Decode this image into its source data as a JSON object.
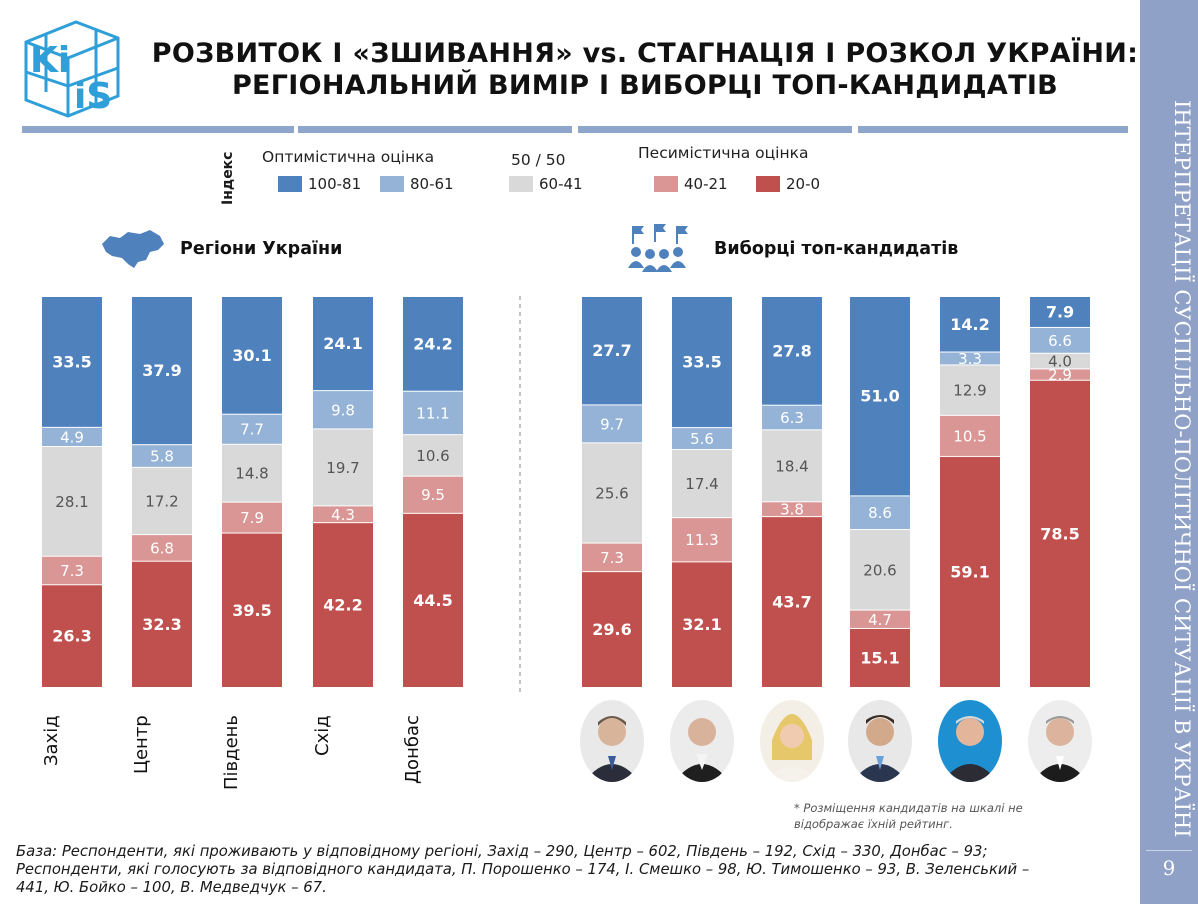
{
  "header": {
    "title_line1": "РОЗВИТОК І «ЗШИВАННЯ» vs. СТАГНАЦІЯ І РОЗКОЛ УКРАЇНИ:",
    "title_line2": "РЕГІОНАЛЬНИЙ ВИМІР І ВИБОРЦІ ТОП-КАНДИДАТІВ",
    "logo_text_1": "Ki",
    "logo_text_2": "iS"
  },
  "sidebar": {
    "text": "ІНТЕРПРЕТАЦІЇ СУСПІЛЬНО-ПОЛІТИЧНОЇ СИТУАЦІЇ В УКРАЇНІ",
    "page_number": "9"
  },
  "legend": {
    "index_label": "Індекс",
    "optimistic": "Оптимістична оцінка",
    "neutral": "50 / 50",
    "pessimistic": "Песимістична оцінка",
    "items": [
      {
        "label": "100-81",
        "color": "#4f81bd"
      },
      {
        "label": "80-61",
        "color": "#95b3d7"
      },
      {
        "label": "60-41",
        "color": "#d9d9d9"
      },
      {
        "label": "40-21",
        "color": "#da9694"
      },
      {
        "label": "20-0",
        "color": "#c0504d"
      }
    ]
  },
  "sections": {
    "regions_title": "Регіони України",
    "voters_title": "Виборці топ-кандидатів"
  },
  "chart_data": {
    "type": "bar",
    "stacked": true,
    "percent": true,
    "categories": [
      "Захід",
      "Центр",
      "Південь",
      "Схід",
      "Донбас",
      "",
      "",
      "",
      "",
      "",
      ""
    ],
    "series": [
      {
        "name": "100-81",
        "color": "#4f81bd",
        "values": [
          33.5,
          37.9,
          30.1,
          24.1,
          24.2,
          27.7,
          33.5,
          27.8,
          51.0,
          14.2,
          7.9
        ]
      },
      {
        "name": "80-61",
        "color": "#95b3d7",
        "values": [
          4.9,
          5.8,
          7.7,
          9.8,
          11.1,
          9.7,
          5.6,
          6.3,
          8.6,
          3.3,
          6.6
        ]
      },
      {
        "name": "60-41",
        "color": "#d9d9d9",
        "values": [
          28.1,
          17.2,
          14.8,
          19.7,
          10.6,
          25.6,
          17.4,
          18.4,
          20.6,
          12.9,
          4.0
        ]
      },
      {
        "name": "40-21",
        "color": "#da9694",
        "values": [
          7.3,
          6.8,
          7.9,
          4.3,
          9.5,
          7.3,
          11.3,
          3.8,
          4.7,
          10.5,
          2.9
        ]
      },
      {
        "name": "20-0",
        "color": "#c0504d",
        "values": [
          26.3,
          32.3,
          39.5,
          42.2,
          44.5,
          29.6,
          32.1,
          43.7,
          15.1,
          59.1,
          78.5
        ]
      }
    ],
    "bold_series": [
      "100-81",
      "20-0"
    ]
  },
  "footer": {
    "note_line1": "* Розміщення кандидатів на шкалі не",
    "note_line2": "відображає їхній рейтинг.",
    "base_line1": "База: Респонденти, які проживають у відповідному регіоні, Захід – 290, Центр – 602, Південь – 192, Схід – 330, Донбас – 93;",
    "base_line2": "Респонденти, які голосують за відповідного кандидата, П. Порошенко – 174, І. Смешко – 98, Ю. Тимошенко – 93, В. Зеленський –",
    "base_line3": "441, Ю. Бойко – 100, В. Медведчук – 67."
  }
}
